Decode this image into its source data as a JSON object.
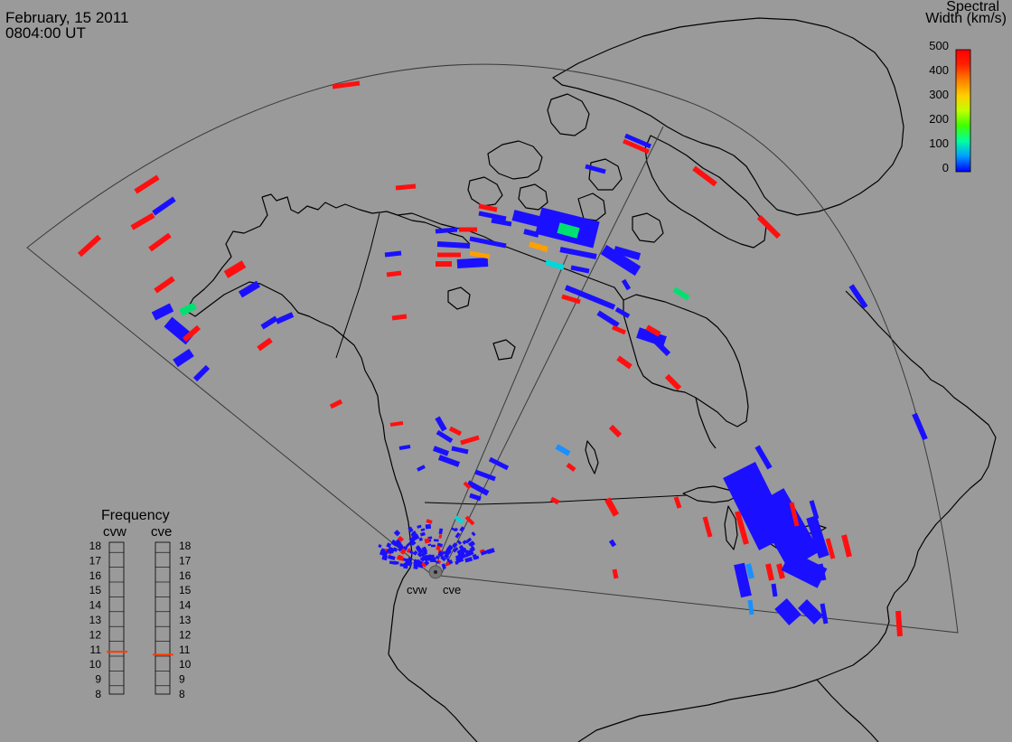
{
  "header": {
    "date": "February, 15 2011",
    "time": "0804:00 UT"
  },
  "colorbar": {
    "title_line1": "Spectral",
    "title_line2": "Width (km/s)",
    "ticks": [
      "500",
      "400",
      "300",
      "200",
      "100",
      "0"
    ],
    "colors": [
      "#0000ff",
      "#00a0ff",
      "#00ffa0",
      "#40ff00",
      "#c0ff00",
      "#ffd000",
      "#ff8000",
      "#ff2000",
      "#ff0000"
    ]
  },
  "radars": {
    "site_labels": [
      "cvw",
      "cve"
    ]
  },
  "frequency_panel": {
    "title": "Frequency",
    "radars": [
      "cvw",
      "cve"
    ],
    "ticks": [
      "18",
      "17",
      "16",
      "15",
      "14",
      "13",
      "12",
      "11",
      "10",
      "9",
      "8"
    ],
    "current_mhz": {
      "cvw": 10.8,
      "cve": 10.6
    },
    "marker_color": "#ff3c00"
  },
  "palette": {
    "background": "#9a9a9a",
    "coastline": "#000000",
    "fov": "#3a3a3a",
    "blue": "#1a10ff",
    "red": "#ff1010",
    "cyan": "#00d8d8",
    "green": "#00e070",
    "orange": "#ffa000",
    "sky": "#1a90ff"
  }
}
